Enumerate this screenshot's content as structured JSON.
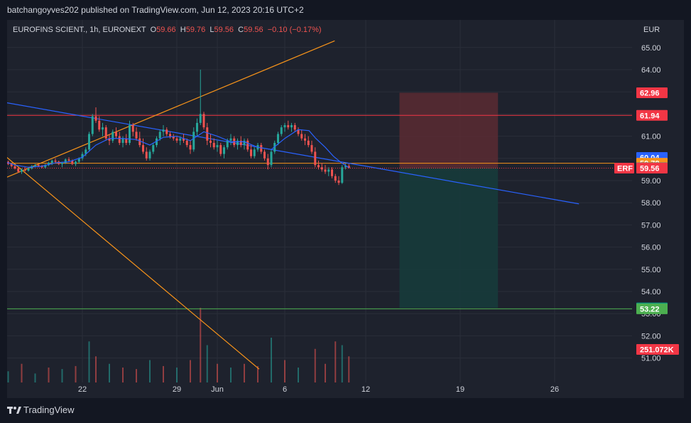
{
  "publish_line": "batchangoyves202 published on TradingView.com, Jun 12, 2023 20:16 UTC+2",
  "footer_brand": "TradingView",
  "colors": {
    "up": "#26a69a",
    "down": "#ef5350",
    "ma": "#2962ff",
    "orange": "#f7931a",
    "red_line": "#f23645",
    "green_line": "#4caf50",
    "text": "#d1d4dc",
    "grid": "#2a2e39",
    "stop_zone": "#5b2a33",
    "target_zone": "#163b3b"
  },
  "chart_data": {
    "type": "candlestick",
    "symbol_line": {
      "name": "EUROFINS SCIENT., 1h, EURONEXT",
      "o_label": "O",
      "o": "59.66",
      "h_label": "H",
      "h": "59.76",
      "l_label": "L",
      "l": "59.56",
      "c_label": "C",
      "c": "59.56",
      "change": "−0.10 (−0.17%)"
    },
    "currency": "EUR",
    "y_ticks": [
      65.0,
      64.0,
      63.0,
      62.0,
      61.0,
      60.0,
      59.0,
      58.0,
      57.0,
      56.0,
      55.0,
      54.0,
      53.0,
      52.0,
      51.0
    ],
    "y_tick_labels": [
      "65.00",
      "64.00",
      "63.00",
      "62.00",
      "61.00",
      "60.00",
      "59.00",
      "58.00",
      "57.00",
      "56.00",
      "55.00",
      "54.00",
      "53.00",
      "52.00",
      "51.00"
    ],
    "x_ticks": [
      {
        "day": 22,
        "label": "22"
      },
      {
        "day": 29,
        "label": "29"
      },
      {
        "day": 32,
        "label": "Jun"
      },
      {
        "day": 37,
        "label": "6"
      },
      {
        "day": 43,
        "label": "12"
      },
      {
        "day": 50,
        "label": "19"
      },
      {
        "day": 57,
        "label": "26"
      }
    ],
    "price_badges": [
      {
        "value": 62.96,
        "label": "62.96",
        "color": "#f23645"
      },
      {
        "value": 61.94,
        "label": "61.94",
        "color": "#f23645"
      },
      {
        "value": 60.04,
        "label": "60.04",
        "color": "#2962ff"
      },
      {
        "value": 59.78,
        "label": "59.78",
        "color": "#f7931a"
      },
      {
        "value": 59.58,
        "label": "59.58",
        "color": "#787b86"
      },
      {
        "value": 59.56,
        "label": "59.56",
        "color": "#f23645",
        "tag": "ERF"
      },
      {
        "value": 53.26,
        "label": "53.26",
        "color": "#089981"
      },
      {
        "value": 53.22,
        "label": "53.22",
        "color": "#4caf50"
      }
    ],
    "volume_badge": {
      "label": "251.072K",
      "color": "#f23645"
    },
    "horizontal_lines": [
      {
        "value": 61.94,
        "color": "#f23645"
      },
      {
        "value": 59.78,
        "color": "#f7931a"
      },
      {
        "value": 53.22,
        "color": "#4caf50"
      }
    ],
    "trend_lines": [
      {
        "from": [
          16.0,
          59.05
        ],
        "to": [
          40.7,
          65.3
        ],
        "color": "#f7931a"
      },
      {
        "from": [
          16.0,
          60.25
        ],
        "to": [
          35.1,
          50.5
        ],
        "color": "#f7931a"
      },
      {
        "from": [
          16.0,
          62.55
        ],
        "to": [
          58.8,
          57.95
        ],
        "color": "#2962ff"
      }
    ],
    "position_tool": {
      "x_start": 45.5,
      "x_end": 52.8,
      "entry": 59.56,
      "stop": 62.96,
      "target": 53.26
    },
    "candles": [
      [
        16.0,
        59.92,
        60.0,
        59.85,
        59.9
      ],
      [
        16.25,
        59.9,
        59.95,
        59.8,
        59.85
      ],
      [
        16.5,
        59.85,
        59.9,
        59.7,
        59.75
      ],
      [
        16.75,
        59.75,
        59.8,
        59.6,
        59.65
      ],
      [
        17.0,
        59.65,
        59.7,
        59.5,
        59.55
      ],
      [
        17.25,
        59.55,
        59.6,
        59.35,
        59.4
      ],
      [
        17.5,
        59.4,
        59.55,
        59.3,
        59.5
      ],
      [
        17.75,
        59.5,
        59.6,
        59.4,
        59.45
      ],
      [
        18.0,
        59.45,
        59.6,
        59.4,
        59.55
      ],
      [
        18.25,
        59.55,
        59.7,
        59.5,
        59.65
      ],
      [
        18.5,
        59.65,
        59.75,
        59.6,
        59.7
      ],
      [
        18.75,
        59.7,
        59.75,
        59.6,
        59.65
      ],
      [
        19.0,
        59.65,
        59.7,
        59.55,
        59.6
      ],
      [
        19.25,
        59.6,
        59.75,
        59.55,
        59.7
      ],
      [
        19.5,
        59.7,
        59.85,
        59.65,
        59.8
      ],
      [
        19.75,
        59.8,
        59.95,
        59.7,
        59.9
      ],
      [
        20.0,
        59.9,
        60.0,
        59.8,
        59.85
      ],
      [
        20.25,
        59.85,
        59.9,
        59.7,
        59.75
      ],
      [
        20.5,
        59.75,
        59.85,
        59.6,
        59.8
      ],
      [
        20.75,
        59.8,
        60.0,
        59.75,
        59.95
      ],
      [
        21.0,
        59.95,
        60.05,
        59.85,
        59.9
      ],
      [
        21.25,
        59.9,
        59.95,
        59.7,
        59.75
      ],
      [
        21.5,
        59.75,
        59.9,
        59.65,
        59.85
      ],
      [
        21.75,
        59.85,
        60.05,
        59.8,
        60.0
      ],
      [
        22.0,
        60.0,
        60.3,
        59.9,
        60.2
      ],
      [
        22.25,
        60.2,
        60.5,
        60.1,
        60.4
      ],
      [
        22.5,
        60.4,
        61.2,
        60.3,
        61.1
      ],
      [
        22.75,
        61.1,
        62.0,
        61.0,
        61.9
      ],
      [
        23.0,
        61.9,
        62.3,
        61.6,
        61.7
      ],
      [
        23.25,
        61.7,
        61.9,
        61.2,
        61.3
      ],
      [
        23.5,
        61.3,
        61.6,
        61.0,
        61.4
      ],
      [
        23.75,
        61.4,
        61.5,
        60.8,
        60.9
      ],
      [
        24.0,
        60.9,
        61.1,
        60.6,
        60.8
      ],
      [
        24.25,
        60.8,
        61.3,
        60.7,
        61.2
      ],
      [
        24.5,
        61.2,
        61.4,
        60.9,
        61.0
      ],
      [
        24.75,
        61.0,
        61.2,
        60.6,
        60.7
      ],
      [
        25.0,
        60.7,
        61.0,
        60.5,
        60.9
      ],
      [
        25.25,
        60.9,
        61.1,
        60.6,
        60.7
      ],
      [
        25.5,
        60.7,
        61.7,
        60.6,
        61.5
      ],
      [
        25.75,
        61.5,
        61.6,
        61.0,
        61.2
      ],
      [
        26.0,
        61.2,
        61.4,
        60.8,
        60.9
      ],
      [
        26.25,
        60.9,
        61.2,
        60.5,
        60.6
      ],
      [
        26.5,
        60.6,
        60.9,
        60.2,
        60.3
      ],
      [
        26.75,
        60.3,
        60.5,
        59.9,
        60.0
      ],
      [
        27.0,
        60.0,
        60.4,
        59.9,
        60.3
      ],
      [
        27.25,
        60.3,
        60.7,
        60.2,
        60.6
      ],
      [
        27.5,
        60.6,
        61.0,
        60.5,
        60.9
      ],
      [
        27.75,
        60.9,
        61.3,
        60.8,
        61.2
      ],
      [
        28.0,
        61.2,
        61.5,
        61.0,
        61.3
      ],
      [
        28.25,
        61.3,
        61.4,
        61.0,
        61.1
      ],
      [
        28.5,
        61.1,
        61.2,
        60.9,
        61.0
      ],
      [
        28.75,
        61.0,
        61.1,
        60.8,
        60.9
      ],
      [
        29.0,
        60.9,
        61.0,
        60.7,
        60.8
      ],
      [
        29.25,
        60.8,
        61.0,
        60.6,
        60.9
      ],
      [
        29.5,
        60.9,
        61.1,
        60.7,
        60.8
      ],
      [
        29.75,
        60.8,
        60.9,
        60.5,
        60.6
      ],
      [
        30.0,
        60.6,
        60.8,
        60.2,
        60.4
      ],
      [
        30.25,
        60.4,
        61.4,
        60.3,
        61.2
      ],
      [
        30.5,
        61.2,
        61.8,
        61.0,
        61.6
      ],
      [
        30.75,
        61.6,
        64.0,
        61.5,
        62.0
      ],
      [
        31.0,
        62.0,
        62.1,
        61.3,
        61.4
      ],
      [
        31.25,
        61.4,
        61.6,
        60.6,
        60.8
      ],
      [
        31.5,
        60.8,
        61.1,
        60.5,
        60.7
      ],
      [
        31.75,
        60.7,
        60.9,
        60.4,
        60.5
      ],
      [
        32.0,
        60.5,
        60.8,
        60.3,
        60.6
      ],
      [
        32.25,
        60.6,
        60.7,
        60.1,
        60.2
      ],
      [
        32.5,
        60.2,
        60.6,
        60.0,
        60.5
      ],
      [
        32.75,
        60.5,
        60.9,
        60.4,
        60.8
      ],
      [
        33.0,
        60.8,
        61.1,
        60.6,
        60.9
      ],
      [
        33.25,
        60.9,
        61.0,
        60.5,
        60.6
      ],
      [
        33.5,
        60.6,
        60.9,
        60.4,
        60.8
      ],
      [
        33.75,
        60.8,
        61.0,
        60.5,
        60.6
      ],
      [
        34.0,
        60.6,
        60.9,
        60.4,
        60.8
      ],
      [
        34.25,
        60.8,
        60.9,
        60.3,
        60.4
      ],
      [
        34.5,
        60.4,
        60.6,
        60.0,
        60.1
      ],
      [
        34.75,
        60.1,
        60.5,
        60.0,
        60.4
      ],
      [
        35.0,
        60.4,
        60.7,
        60.3,
        60.6
      ],
      [
        35.25,
        60.6,
        60.7,
        60.2,
        60.3
      ],
      [
        35.5,
        60.3,
        60.4,
        59.9,
        60.0
      ],
      [
        35.75,
        60.0,
        60.2,
        59.5,
        59.7
      ],
      [
        36.0,
        59.7,
        60.4,
        59.6,
        60.3
      ],
      [
        36.25,
        60.3,
        60.8,
        60.2,
        60.7
      ],
      [
        36.5,
        60.7,
        61.2,
        60.6,
        61.1
      ],
      [
        36.75,
        61.1,
        61.5,
        61.0,
        61.4
      ],
      [
        37.0,
        61.4,
        61.6,
        61.2,
        61.5
      ],
      [
        37.25,
        61.5,
        61.7,
        61.3,
        61.4
      ],
      [
        37.5,
        61.4,
        61.6,
        61.2,
        61.5
      ],
      [
        37.75,
        61.5,
        61.6,
        61.2,
        61.3
      ],
      [
        38.0,
        61.3,
        61.4,
        61.0,
        61.1
      ],
      [
        38.25,
        61.1,
        61.3,
        60.8,
        60.9
      ],
      [
        38.5,
        60.9,
        61.1,
        60.6,
        60.8
      ],
      [
        38.75,
        60.8,
        61.0,
        60.5,
        60.6
      ],
      [
        39.0,
        60.6,
        60.8,
        60.2,
        60.3
      ],
      [
        39.25,
        60.3,
        60.5,
        59.6,
        59.7
      ],
      [
        39.5,
        59.7,
        59.9,
        59.5,
        59.6
      ],
      [
        39.75,
        59.6,
        59.8,
        59.4,
        59.5
      ],
      [
        40.0,
        59.5,
        59.7,
        59.3,
        59.4
      ],
      [
        40.25,
        59.4,
        59.6,
        59.2,
        59.5
      ],
      [
        40.5,
        59.5,
        59.6,
        59.1,
        59.2
      ],
      [
        40.75,
        59.2,
        59.3,
        58.9,
        59.0
      ],
      [
        41.0,
        59.0,
        59.2,
        58.8,
        58.9
      ],
      [
        41.25,
        58.9,
        59.7,
        58.85,
        59.6
      ],
      [
        41.5,
        59.6,
        59.76,
        59.5,
        59.66
      ],
      [
        41.75,
        59.66,
        59.76,
        59.56,
        59.56
      ]
    ],
    "ma": [
      [
        16.0,
        59.9
      ],
      [
        17.0,
        59.7
      ],
      [
        18.0,
        59.6
      ],
      [
        19.0,
        59.65
      ],
      [
        20.0,
        59.8
      ],
      [
        21.0,
        59.85
      ],
      [
        22.0,
        60.05
      ],
      [
        23.0,
        60.6
      ],
      [
        24.0,
        60.9
      ],
      [
        25.0,
        60.9
      ],
      [
        26.0,
        60.85
      ],
      [
        27.0,
        60.6
      ],
      [
        28.0,
        60.95
      ],
      [
        29.0,
        61.0
      ],
      [
        30.0,
        60.8
      ],
      [
        31.0,
        61.2
      ],
      [
        32.0,
        61.0
      ],
      [
        33.0,
        60.75
      ],
      [
        34.0,
        60.75
      ],
      [
        35.0,
        60.5
      ],
      [
        36.0,
        60.4
      ],
      [
        37.0,
        60.9
      ],
      [
        38.0,
        61.3
      ],
      [
        38.8,
        61.25
      ],
      [
        39.3,
        60.9
      ],
      [
        40.0,
        60.5
      ],
      [
        40.6,
        60.1
      ],
      [
        41.2,
        59.8
      ],
      [
        41.75,
        59.58
      ]
    ],
    "volume": [
      [
        16.5,
        0.15,
        "up"
      ],
      [
        17.5,
        0.25,
        "down"
      ],
      [
        18.5,
        0.12,
        "up"
      ],
      [
        19.5,
        0.2,
        "down"
      ],
      [
        20.5,
        0.18,
        "up"
      ],
      [
        21.5,
        0.22,
        "down"
      ],
      [
        22.5,
        0.55,
        "up"
      ],
      [
        23.0,
        0.35,
        "down"
      ],
      [
        24.0,
        0.25,
        "up"
      ],
      [
        25.0,
        0.2,
        "down"
      ],
      [
        26.0,
        0.18,
        "down"
      ],
      [
        27.0,
        0.3,
        "up"
      ],
      [
        28.0,
        0.22,
        "down"
      ],
      [
        29.0,
        0.2,
        "up"
      ],
      [
        30.0,
        0.3,
        "down"
      ],
      [
        30.75,
        1.0,
        "down"
      ],
      [
        31.25,
        0.5,
        "up"
      ],
      [
        32.0,
        0.25,
        "down"
      ],
      [
        33.0,
        0.2,
        "up"
      ],
      [
        34.0,
        0.25,
        "down"
      ],
      [
        35.0,
        0.22,
        "down"
      ],
      [
        36.0,
        0.6,
        "up"
      ],
      [
        37.0,
        0.3,
        "down"
      ],
      [
        38.0,
        0.2,
        "up"
      ],
      [
        39.25,
        0.45,
        "down"
      ],
      [
        40.0,
        0.25,
        "down"
      ],
      [
        40.75,
        0.55,
        "down"
      ],
      [
        41.25,
        0.5,
        "up"
      ],
      [
        41.75,
        0.35,
        "down"
      ]
    ]
  }
}
